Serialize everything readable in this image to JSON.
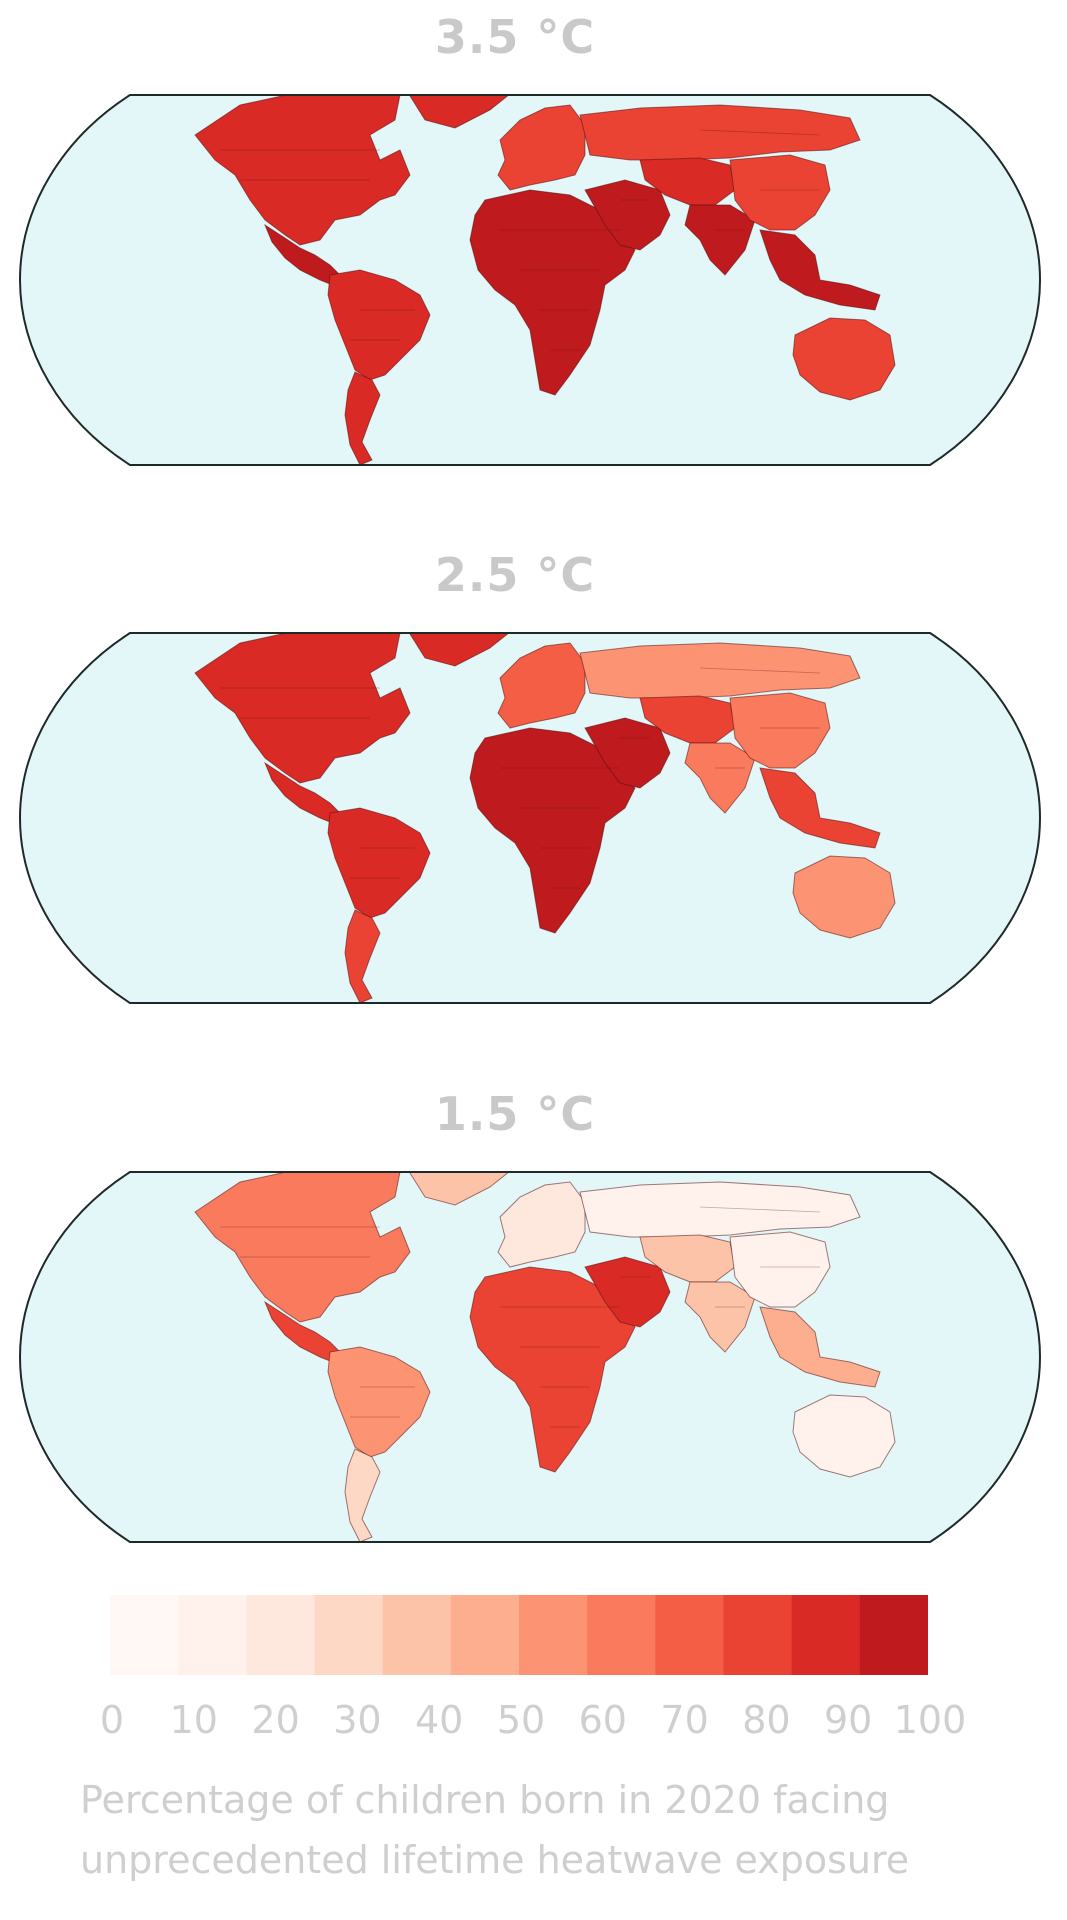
{
  "maps": [
    {
      "title": "3.5 °C"
    },
    {
      "title": "2.5 °C"
    },
    {
      "title": "1.5 °C"
    }
  ],
  "colors": {
    "ocean": "#e3f6f8",
    "outline": "#1e2a2a",
    "title": "#c9c9c9",
    "label": "#cfcfcf",
    "scale": [
      "#fff8f5",
      "#fff2ec",
      "#fee8dd",
      "#fdd8c4",
      "#fcc3a9",
      "#fcae8f",
      "#fc9474",
      "#f97a5c",
      "#f45e45",
      "#ea4333",
      "#d92a25",
      "#bf1a1e"
    ]
  },
  "colorbar": {
    "ticks": [
      "0",
      "10",
      "20",
      "30",
      "40",
      "50",
      "60",
      "70",
      "80",
      "90",
      "100"
    ],
    "caption_line1": "Percentage of children born in 2020 facing",
    "caption_line2": "unprecedented lifetime heatwave exposure"
  },
  "regions": {
    "3.5 °C": {
      "north_america": 95,
      "greenland": 95,
      "central_america": 97,
      "south_america": 93,
      "southern_cone": 88,
      "europe": 85,
      "russia": 78,
      "africa": 99,
      "middle_east": 99,
      "central_asia": 95,
      "south_asia": 96,
      "east_asia": 85,
      "southeast_asia": 97,
      "australia": 82
    },
    "2.5 °C": {
      "north_america": 88,
      "greenland": 90,
      "central_america": 93,
      "south_america": 88,
      "southern_cone": 85,
      "europe": 75,
      "russia": 50,
      "africa": 96,
      "middle_east": 96,
      "central_asia": 80,
      "south_asia": 65,
      "east_asia": 60,
      "southeast_asia": 85,
      "australia": 52
    },
    "1.5 °C": {
      "north_america": 60,
      "greenland": 40,
      "central_america": 80,
      "south_america": 50,
      "southern_cone": 30,
      "europe": 20,
      "russia": 8,
      "africa": 82,
      "middle_east": 92,
      "central_asia": 35,
      "south_asia": 40,
      "east_asia": 10,
      "southeast_asia": 45,
      "australia": 12
    }
  }
}
